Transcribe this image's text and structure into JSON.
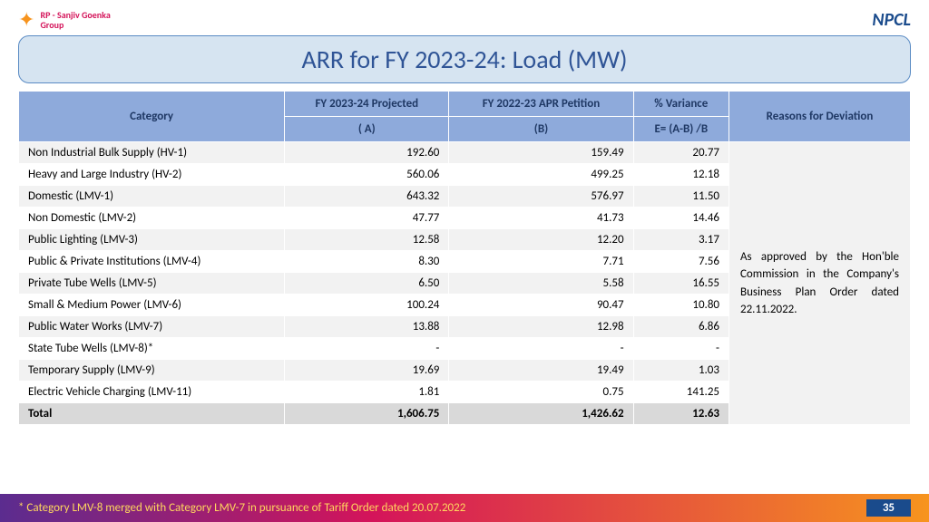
{
  "header": {
    "logo_left_line1": "RP - Sanjiv Goenka",
    "logo_left_line2": "Group",
    "logo_right": "NPCL"
  },
  "title": "ARR for FY 2023-24: Load (MW)",
  "columns": {
    "cat": "Category",
    "colA": "FY 2023-24 Projected",
    "colB": "FY 2022-23 APR Petition",
    "colV": "% Variance",
    "reasons": "Reasons for Deviation",
    "subA": "( A)",
    "subB": "(B)",
    "subE": "E= (A-B) /B"
  },
  "rows": [
    {
      "cat": "Non Industrial Bulk Supply (HV-1)",
      "a": "192.60",
      "b": "159.49",
      "v": "20.77"
    },
    {
      "cat": "Heavy and Large Industry (HV-2)",
      "a": "560.06",
      "b": "499.25",
      "v": "12.18"
    },
    {
      "cat": "Domestic (LMV-1)",
      "a": "643.32",
      "b": "576.97",
      "v": "11.50"
    },
    {
      "cat": "Non Domestic (LMV-2)",
      "a": "47.77",
      "b": "41.73",
      "v": "14.46"
    },
    {
      "cat": "Public Lighting (LMV-3)",
      "a": "12.58",
      "b": "12.20",
      "v": "3.17"
    },
    {
      "cat": "Public & Private Institutions (LMV-4)",
      "a": "8.30",
      "b": "7.71",
      "v": "7.56"
    },
    {
      "cat": "Private Tube Wells (LMV-5)",
      "a": "6.50",
      "b": "5.58",
      "v": "16.55"
    },
    {
      "cat": "Small & Medium Power (LMV-6)",
      "a": "100.24",
      "b": "90.47",
      "v": "10.80"
    },
    {
      "cat": "Public Water Works (LMV-7)",
      "a": "13.88",
      "b": "12.98",
      "v": "6.86"
    },
    {
      "cat": "State Tube Wells (LMV-8)*",
      "a": "-",
      "b": "-",
      "v": "-"
    },
    {
      "cat": "Temporary Supply (LMV-9)",
      "a": "19.69",
      "b": "19.49",
      "v": "1.03"
    },
    {
      "cat": "Electric Vehicle Charging (LMV-11)",
      "a": "1.81",
      "b": "0.75",
      "v": "141.25"
    }
  ],
  "total": {
    "cat": "Total",
    "a": "1,606.75",
    "b": "1,426.62",
    "v": "12.63"
  },
  "reasons_text": "As approved by the Hon'ble Commission in the Company's Business Plan Order dated 22.11.2022.",
  "footnote": "* Category LMV-8 merged with Category LMV-7 in pursuance of Tariff Order dated 20.07.2022",
  "page": "35",
  "style": {
    "header_bg": "#8eaadb",
    "title_bg": "#d6e4f1",
    "title_color": "#2f5496",
    "row_alt": "#f2f2f2",
    "total_bg": "#d9d9d9",
    "footnote_gradient": [
      "#5b2c8f",
      "#d4145a",
      "#f7941e"
    ],
    "footnote_text": "#ffd75e"
  }
}
